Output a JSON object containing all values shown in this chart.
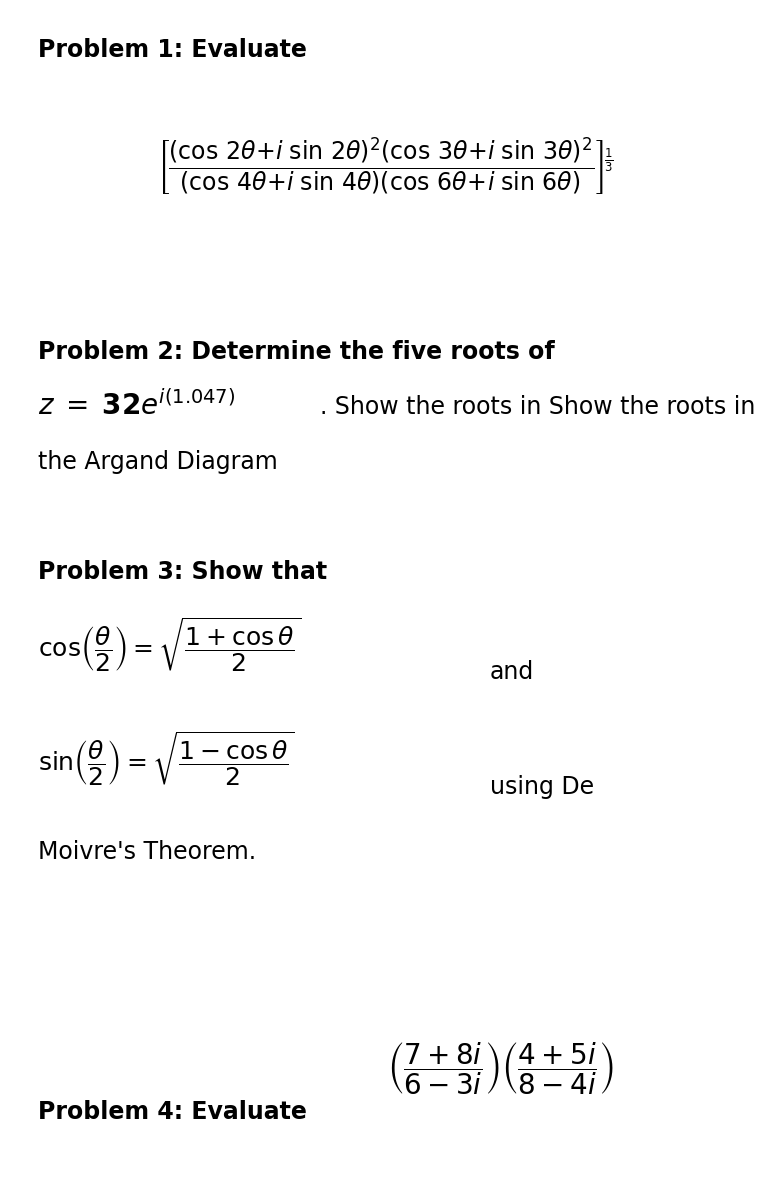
{
  "bg_color": "#ffffff",
  "text_color": "#000000",
  "figsize": [
    7.71,
    12.0
  ],
  "dpi": 100,
  "prob1_label": "Problem 1: Evaluate",
  "prob2_label": "Problem 2: Determine the five roots of",
  "prob2_cont": ". Show the roots in",
  "prob2_line2": "the Argand Diagram",
  "prob3_label": "Problem 3: Show that",
  "prob3_and": "and",
  "prob3_using": "using De",
  "prob3_moivre": "Moivre's Theorem.",
  "prob4_label": "Problem 4: Evaluate"
}
